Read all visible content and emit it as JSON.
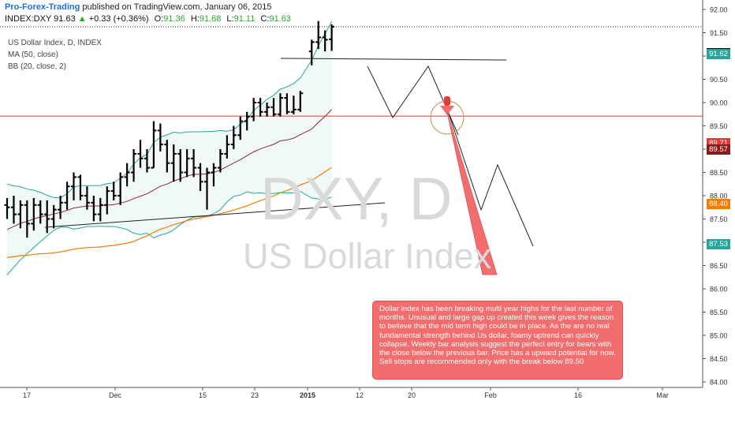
{
  "header": {
    "publisher": "Pro-Forex-Trading",
    "published_text": "published on TradingView.com, January 06, 2015",
    "symbol": "INDEX:DXY",
    "last": "91.63",
    "change_arrow": "▲",
    "change": "+0.33 (+0.36%)",
    "o_label": "O:",
    "o_value": "91.36",
    "h_label": "H:",
    "h_value": "91.68",
    "l_label": "L:",
    "l_value": "91.11",
    "c_label": "C:",
    "c_value": "91.63"
  },
  "studies": {
    "title": "US Dollar Index, D, INDEX",
    "ma": "MA (50, close)",
    "bb": "BB (20, close, 2)"
  },
  "watermark": {
    "symbol": "DXY, D",
    "name": "US Dollar Index"
  },
  "annotation_text": "Dollar index has been breaking multi year highs for the last number of months. Unusual and large gap up created this week gives the reason to believe that the mid term high could be in place. As the are no real fundamental strength behind Us dollar, foamy uptrend can quickly collapse. Weekly bar analysis suggest the perfect entry for bears with the close below the previous bar. Price has a upward potential for now. Sell stops are recommended only with the break below 89.50",
  "price_tags": [
    {
      "label": "91.63",
      "value": 91.63,
      "color": "#000000"
    },
    {
      "label": "91.62",
      "value": 91.62,
      "color": "#26a69a"
    },
    {
      "label": "89.71",
      "value": 89.71,
      "color": "#e53935"
    },
    {
      "label": "89.57",
      "value": 89.57,
      "color": "#8b1a1a"
    },
    {
      "label": "88.40",
      "value": 88.4,
      "color": "#f57c00"
    },
    {
      "label": "87.53",
      "value": 87.53,
      "color": "#26a69a"
    }
  ],
  "colors": {
    "up": "#27a82c",
    "publisher": "#1e6fd6",
    "hline": "#e53935",
    "ma": "#f57c00",
    "bb": "#26a69a",
    "note": "#f26d6d"
  },
  "chart_data": {
    "type": "ohlc",
    "x_axis": {
      "labels": [
        "17",
        "Dec",
        "15",
        "23",
        "2015",
        "12",
        "20",
        "Feb",
        "16",
        "Mar"
      ]
    },
    "y_axis": {
      "min": 84.0,
      "max": 92.0,
      "ticks": [
        "84.00",
        "84.50",
        "85.00",
        "85.50",
        "86.00",
        "86.50",
        "87.00",
        "87.50",
        "88.00",
        "88.50",
        "89.00",
        "89.50",
        "90.00",
        "90.50",
        "91.00",
        "91.50",
        "92.00"
      ]
    },
    "horizontal_line": 89.71,
    "bars": [
      {
        "o": 87.8,
        "h": 87.95,
        "l": 87.5,
        "c": 87.75
      },
      {
        "o": 87.75,
        "h": 88.0,
        "l": 87.4,
        "c": 87.6
      },
      {
        "o": 87.6,
        "h": 87.9,
        "l": 87.3,
        "c": 87.8
      },
      {
        "o": 87.8,
        "h": 87.9,
        "l": 87.1,
        "c": 87.4
      },
      {
        "o": 87.4,
        "h": 87.95,
        "l": 87.25,
        "c": 87.8
      },
      {
        "o": 87.8,
        "h": 87.9,
        "l": 87.4,
        "c": 87.6
      },
      {
        "o": 87.6,
        "h": 87.9,
        "l": 87.2,
        "c": 87.5
      },
      {
        "o": 87.5,
        "h": 87.8,
        "l": 87.3,
        "c": 87.7
      },
      {
        "o": 87.7,
        "h": 88.0,
        "l": 87.5,
        "c": 87.85
      },
      {
        "o": 87.85,
        "h": 88.3,
        "l": 87.7,
        "c": 88.2
      },
      {
        "o": 88.2,
        "h": 88.5,
        "l": 87.9,
        "c": 88.4
      },
      {
        "o": 88.4,
        "h": 88.45,
        "l": 87.9,
        "c": 88.0
      },
      {
        "o": 88.0,
        "h": 88.2,
        "l": 87.7,
        "c": 87.85
      },
      {
        "o": 87.85,
        "h": 88.0,
        "l": 87.45,
        "c": 87.6
      },
      {
        "o": 87.6,
        "h": 87.95,
        "l": 87.45,
        "c": 87.8
      },
      {
        "o": 87.8,
        "h": 88.2,
        "l": 87.6,
        "c": 88.1
      },
      {
        "o": 88.1,
        "h": 88.3,
        "l": 87.9,
        "c": 88.0
      },
      {
        "o": 88.0,
        "h": 88.5,
        "l": 87.8,
        "c": 88.4
      },
      {
        "o": 88.4,
        "h": 88.7,
        "l": 88.2,
        "c": 88.5
      },
      {
        "o": 88.5,
        "h": 89.0,
        "l": 88.3,
        "c": 88.9
      },
      {
        "o": 88.9,
        "h": 89.2,
        "l": 88.6,
        "c": 88.8
      },
      {
        "o": 88.8,
        "h": 89.0,
        "l": 88.5,
        "c": 88.6
      },
      {
        "o": 88.6,
        "h": 89.6,
        "l": 88.6,
        "c": 89.4
      },
      {
        "o": 89.4,
        "h": 89.55,
        "l": 88.95,
        "c": 89.1
      },
      {
        "o": 89.1,
        "h": 89.2,
        "l": 88.5,
        "c": 88.7
      },
      {
        "o": 88.7,
        "h": 89.1,
        "l": 88.3,
        "c": 88.9
      },
      {
        "o": 88.9,
        "h": 89.0,
        "l": 88.3,
        "c": 88.5
      },
      {
        "o": 88.5,
        "h": 89.0,
        "l": 88.4,
        "c": 88.8
      },
      {
        "o": 88.8,
        "h": 89.0,
        "l": 88.4,
        "c": 88.6
      },
      {
        "o": 88.6,
        "h": 88.7,
        "l": 88.1,
        "c": 88.3
      },
      {
        "o": 88.3,
        "h": 88.6,
        "l": 87.7,
        "c": 88.5
      },
      {
        "o": 88.5,
        "h": 88.7,
        "l": 88.2,
        "c": 88.6
      },
      {
        "o": 88.6,
        "h": 89.0,
        "l": 88.5,
        "c": 88.9
      },
      {
        "o": 88.9,
        "h": 89.3,
        "l": 88.8,
        "c": 89.1
      },
      {
        "o": 89.1,
        "h": 89.5,
        "l": 89.0,
        "c": 89.3
      },
      {
        "o": 89.3,
        "h": 89.7,
        "l": 89.2,
        "c": 89.6
      },
      {
        "o": 89.6,
        "h": 89.8,
        "l": 89.4,
        "c": 89.7
      },
      {
        "o": 89.7,
        "h": 90.1,
        "l": 89.6,
        "c": 90.0
      },
      {
        "o": 90.0,
        "h": 90.1,
        "l": 89.7,
        "c": 89.8
      },
      {
        "o": 89.8,
        "h": 90.0,
        "l": 89.7,
        "c": 89.9
      },
      {
        "o": 89.9,
        "h": 90.1,
        "l": 89.7,
        "c": 89.75
      },
      {
        "o": 89.75,
        "h": 90.2,
        "l": 89.7,
        "c": 90.1
      },
      {
        "o": 90.1,
        "h": 90.2,
        "l": 89.75,
        "c": 89.8
      },
      {
        "o": 89.8,
        "h": 90.15,
        "l": 89.75,
        "c": 89.85
      },
      {
        "o": 89.85,
        "h": 90.25,
        "l": 89.8,
        "c": 90.2
      },
      {
        "o": 91.1,
        "h": 91.35,
        "l": 90.8,
        "c": 91.3
      },
      {
        "o": 91.3,
        "h": 91.75,
        "l": 91.15,
        "c": 91.4
      },
      {
        "o": 91.4,
        "h": 91.55,
        "l": 91.1,
        "c": 91.35
      },
      {
        "o": 91.36,
        "h": 91.68,
        "l": 91.11,
        "c": 91.63
      }
    ]
  }
}
